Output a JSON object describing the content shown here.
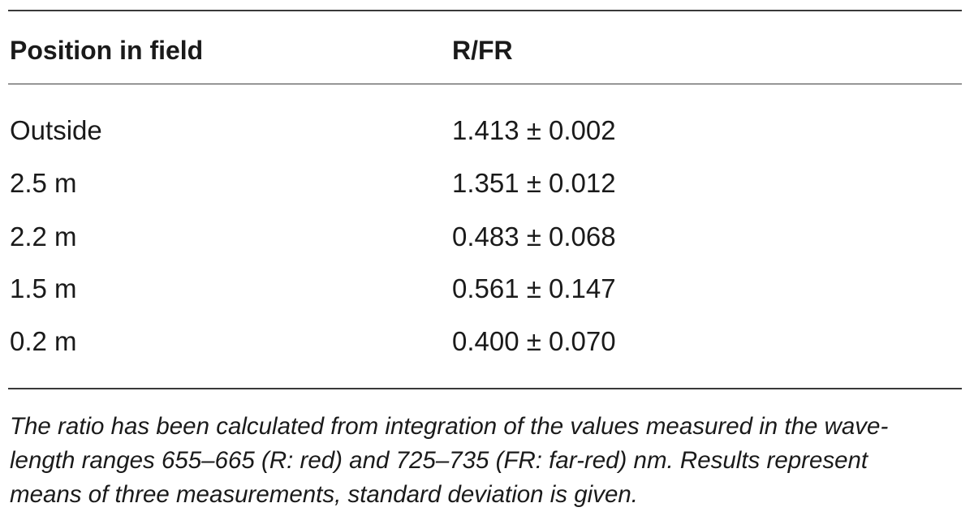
{
  "table": {
    "headers": [
      "Position in field",
      "R/FR"
    ],
    "rows": [
      [
        "Outside",
        "1.413 ± 0.002"
      ],
      [
        "2.5 m",
        "1.351 ± 0.012"
      ],
      [
        "2.2 m",
        "0.483 ± 0.068"
      ],
      [
        "1.5 m",
        "0.561 ± 0.147"
      ],
      [
        "0.2 m",
        "0.400 ± 0.070"
      ]
    ]
  },
  "footnote": {
    "lines": [
      "The ratio has been calculated from integration of the values measured in the wave-",
      "length ranges 655–665 (R: red) and 725–735 (FR: far-red) nm. Results represent",
      "means of three measurements, standard deviation is given."
    ]
  }
}
